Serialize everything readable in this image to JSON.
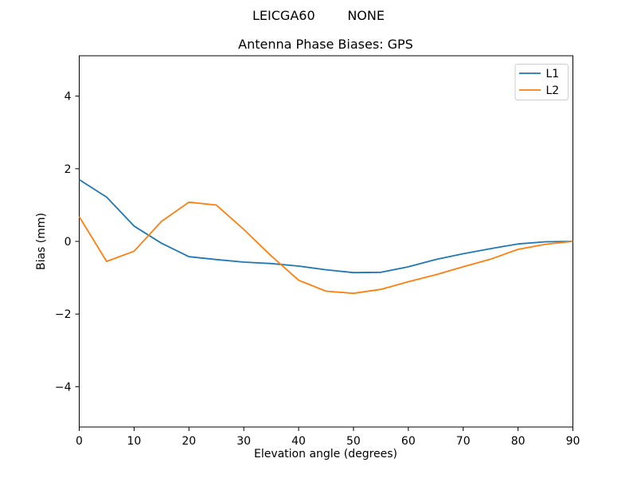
{
  "figure": {
    "background": "#ffffff",
    "suptitle": "LEICGA60        NONE",
    "axes_title": "Antenna Phase Biases: GPS"
  },
  "chart_data": {
    "type": "line",
    "title": "LEICGA60        NONE",
    "subtitle": "Antenna Phase Biases: GPS",
    "xlabel": "Elevation angle (degrees)",
    "ylabel": "Bias (mm)",
    "xlim": [
      0,
      90
    ],
    "ylim": [
      -5.11,
      5.11
    ],
    "xticks": [
      0,
      10,
      20,
      30,
      40,
      50,
      60,
      70,
      80,
      90
    ],
    "yticks": [
      -4,
      -2,
      0,
      2,
      4
    ],
    "grid": false,
    "legend_position": "upper right",
    "axis_color": "#000000",
    "legend_edge_color": "#cccccc",
    "x": [
      0,
      5,
      10,
      15,
      20,
      25,
      30,
      35,
      40,
      45,
      50,
      55,
      60,
      65,
      70,
      75,
      80,
      85,
      90
    ],
    "series": [
      {
        "name": "L1",
        "color": "#1f77b4",
        "values": [
          1.7,
          1.22,
          0.42,
          -0.05,
          -0.42,
          -0.5,
          -0.57,
          -0.61,
          -0.68,
          -0.78,
          -0.86,
          -0.85,
          -0.7,
          -0.5,
          -0.34,
          -0.2,
          -0.07,
          -0.01,
          0.0
        ]
      },
      {
        "name": "L2",
        "color": "#ff7f0e",
        "values": [
          0.68,
          -0.55,
          -0.27,
          0.55,
          1.08,
          1.0,
          0.33,
          -0.4,
          -1.07,
          -1.37,
          -1.43,
          -1.32,
          -1.11,
          -0.92,
          -0.7,
          -0.49,
          -0.22,
          -0.08,
          0.0
        ]
      }
    ]
  }
}
